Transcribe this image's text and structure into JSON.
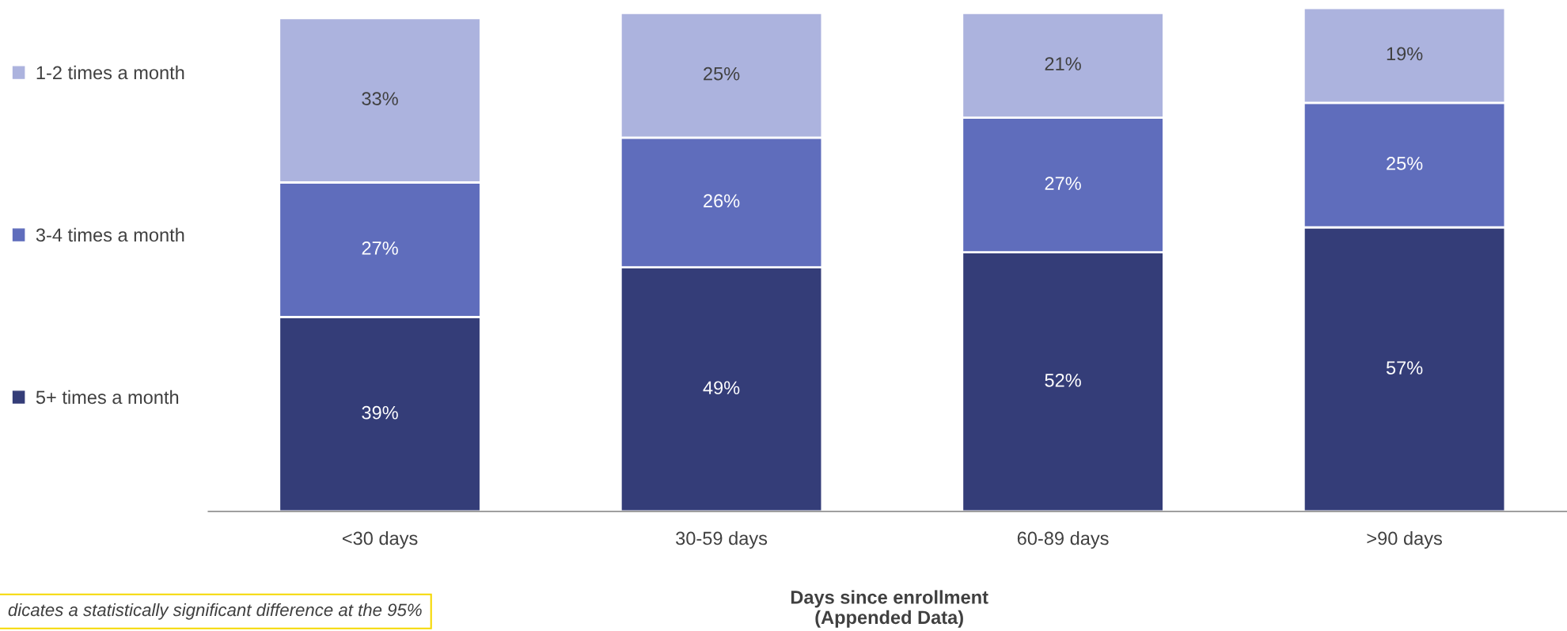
{
  "chart_data": {
    "type": "bar",
    "stacked": true,
    "legend": "left",
    "grid": false,
    "xlabel": "Days since enrollment\n(Appended Data)",
    "categories": [
      "<30 days",
      "30-59 days",
      "60-89 days",
      ">90 days"
    ],
    "series": [
      {
        "name": "5+ times a month",
        "color": "#343d78",
        "values": [
          39,
          49,
          52,
          57
        ],
        "value_labels": [
          "39%",
          "49%",
          "52%",
          "57%"
        ]
      },
      {
        "name": "3-4 times a month",
        "color": "#5f6dbc",
        "values": [
          27,
          26,
          27,
          25
        ],
        "value_labels": [
          "27%",
          "26%",
          "27%",
          "25%"
        ]
      },
      {
        "name": "1-2 times a month",
        "color": "#acb3de",
        "values": [
          33,
          25,
          21,
          19
        ],
        "value_labels": [
          "33%",
          "25%",
          "21%",
          "19%"
        ]
      }
    ],
    "annotations": [
      "dicates a statistically significant difference at the 95%"
    ]
  }
}
